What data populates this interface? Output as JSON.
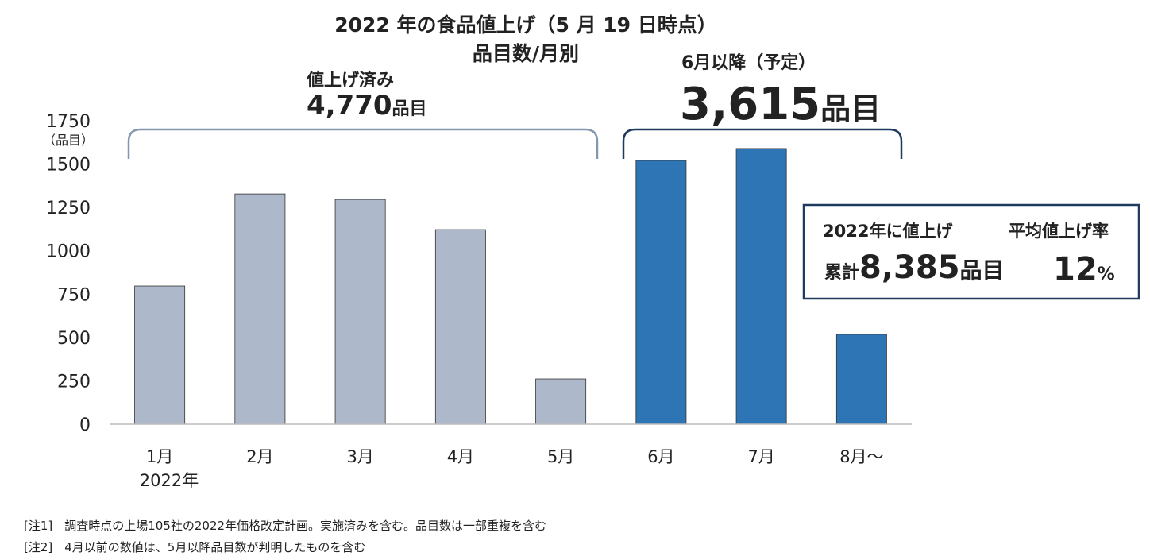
{
  "chart_data": {
    "type": "bar",
    "title": "2022 年の食品値上げ（5 月 19 日時点）",
    "subtitle": "品目数/月別",
    "y_unit": "（品目）",
    "categories": [
      "1月",
      "2月",
      "3月",
      "4月",
      "5月",
      "6月",
      "7月",
      "8月～"
    ],
    "year_label": "2022年",
    "values": [
      797,
      1328,
      1296,
      1122,
      261,
      1521,
      1590,
      518
    ],
    "colors": [
      "#adb9ca",
      "#adb9ca",
      "#adb9ca",
      "#adb9ca",
      "#adb9ca",
      "#2e75b6",
      "#2e75b6",
      "#2e75b6"
    ],
    "ylim": [
      0,
      1750
    ],
    "yticks": [
      0,
      250,
      500,
      750,
      1000,
      1250,
      1500,
      1750
    ],
    "grid": false,
    "done_group": {
      "label": "値上げ済み",
      "total": "4,770",
      "unit": "品目"
    },
    "planned_group": {
      "label": "6月以降（予定）",
      "total": "3,615",
      "unit": "品目"
    },
    "summary": {
      "cumulative_title": "2022年に値上げ",
      "cumulative_prefix": "累計",
      "cumulative_total": "8,385",
      "cumulative_unit": "品目",
      "rate_title": "平均値上げ率",
      "rate": "12",
      "rate_unit": "%"
    },
    "notes": [
      "[注1]　調査時点の上場105社の2022年価格改定計画。実施済みを含む。品目数は一部重複を含む",
      "[注2]　4月以前の数値は、5月以降品目数が判明したものを含む"
    ]
  }
}
